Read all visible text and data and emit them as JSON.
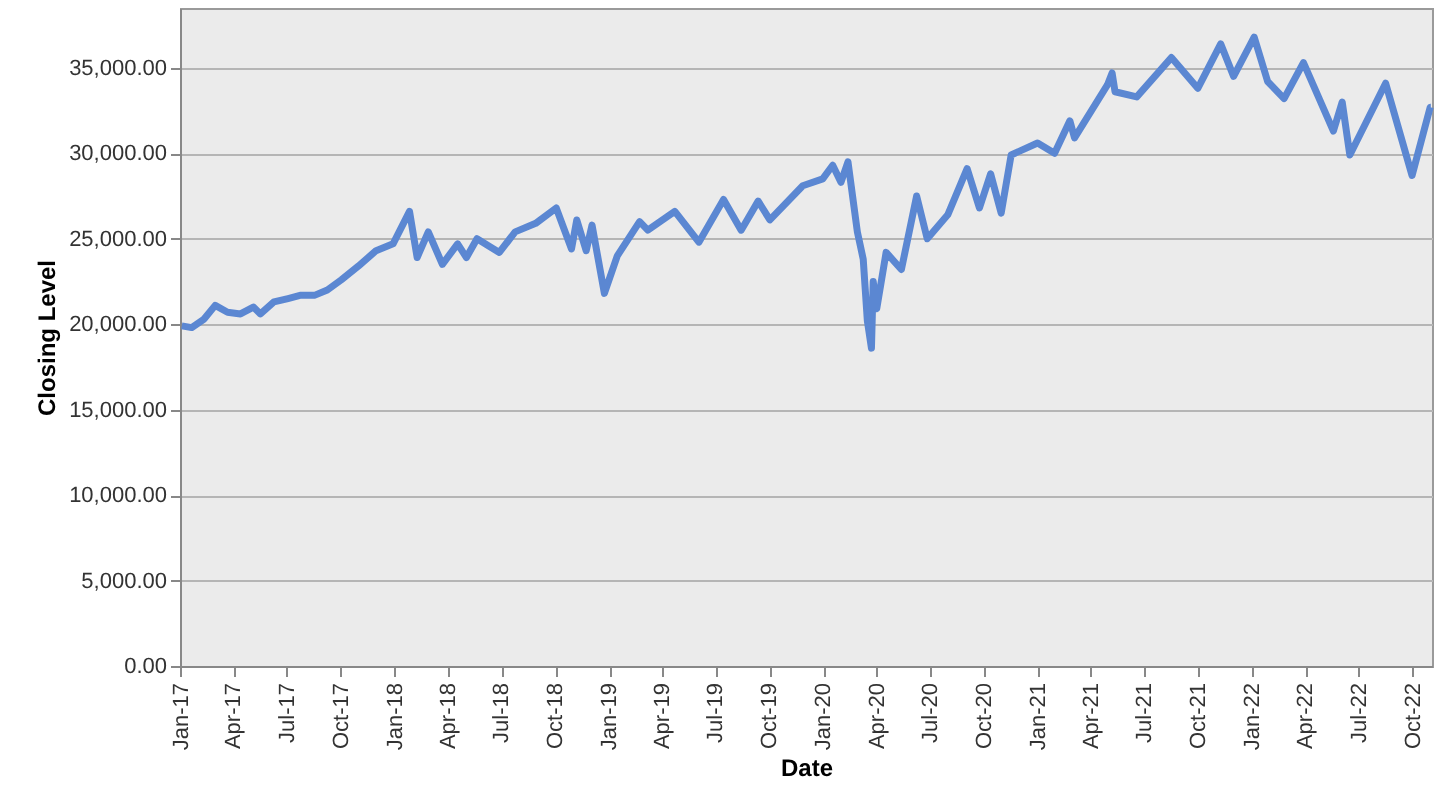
{
  "chart_data": {
    "type": "line",
    "xlabel": "Date",
    "ylabel": "Closing Level",
    "x": [
      "2017-01-03",
      "2017-01-20",
      "2017-02-10",
      "2017-03-01",
      "2017-03-22",
      "2017-04-13",
      "2017-05-05",
      "2017-05-17",
      "2017-06-09",
      "2017-07-03",
      "2017-07-25",
      "2017-08-18",
      "2017-09-08",
      "2017-10-02",
      "2017-10-31",
      "2017-11-30",
      "2017-12-29",
      "2018-01-26",
      "2018-02-08",
      "2018-02-27",
      "2018-03-23",
      "2018-04-18",
      "2018-05-03",
      "2018-05-21",
      "2018-06-28",
      "2018-07-25",
      "2018-08-29",
      "2018-10-03",
      "2018-10-29",
      "2018-11-07",
      "2018-11-23",
      "2018-12-03",
      "2018-12-24",
      "2019-01-15",
      "2019-02-22",
      "2019-03-08",
      "2019-04-23",
      "2019-06-03",
      "2019-07-15",
      "2019-08-14",
      "2019-09-12",
      "2019-10-02",
      "2019-11-27",
      "2019-12-31",
      "2020-01-17",
      "2020-01-31",
      "2020-02-12",
      "2020-02-28",
      "2020-03-09",
      "2020-03-16",
      "2020-03-23",
      "2020-03-26",
      "2020-04-01",
      "2020-04-17",
      "2020-05-13",
      "2020-06-08",
      "2020-06-26",
      "2020-07-31",
      "2020-09-02",
      "2020-09-23",
      "2020-10-12",
      "2020-10-30",
      "2020-11-16",
      "2020-12-31",
      "2021-01-29",
      "2021-02-24",
      "2021-03-04",
      "2021-04-29",
      "2021-05-07",
      "2021-05-12",
      "2021-06-18",
      "2021-08-16",
      "2021-09-30",
      "2021-11-08",
      "2021-11-30",
      "2021-12-29",
      "2022-01-04",
      "2022-01-27",
      "2022-02-24",
      "2022-03-29",
      "2022-05-19",
      "2022-06-03",
      "2022-06-16",
      "2022-08-16",
      "2022-09-30",
      "2022-10-31",
      "2022-11-01"
    ],
    "series": [
      {
        "color": "#5b87d2",
        "values": [
          19900,
          19800,
          20300,
          21100,
          20700,
          20600,
          21000,
          20600,
          21300,
          21500,
          21700,
          21700,
          22000,
          22600,
          23400,
          24300,
          24700,
          26600,
          23900,
          25400,
          23500,
          24700,
          23900,
          25000,
          24200,
          25400,
          25900,
          26800,
          24400,
          26100,
          24300,
          25800,
          21800,
          24000,
          26000,
          25500,
          26600,
          24800,
          27300,
          25500,
          27200,
          26100,
          28100,
          28500,
          29300,
          28300,
          29500,
          25400,
          23800,
          20200,
          18600,
          22500,
          20900,
          24200,
          23200,
          27500,
          25000,
          26400,
          29100,
          26800,
          28800,
          26500,
          29900,
          30600,
          30000,
          31900,
          30900,
          34000,
          34700,
          33600,
          33300,
          35600,
          33800,
          36400,
          34500,
          36400,
          36800,
          34200,
          33200,
          35300,
          31300,
          33000,
          29900,
          34100,
          28700,
          32700,
          32700
        ]
      }
    ],
    "ylim": [
      0,
      38500
    ],
    "yticks": [
      {
        "value": 0,
        "label": "0.00"
      },
      {
        "value": 5000,
        "label": "5,000.00"
      },
      {
        "value": 10000,
        "label": "10,000.00"
      },
      {
        "value": 15000,
        "label": "15,000.00"
      },
      {
        "value": 20000,
        "label": "20,000.00"
      },
      {
        "value": 25000,
        "label": "25,000.00"
      },
      {
        "value": 30000,
        "label": "30,000.00"
      },
      {
        "value": 35000,
        "label": "35,000.00"
      }
    ],
    "xlim": [
      "2016-12-31",
      "2022-11-03"
    ],
    "xticks": [
      {
        "value": "2017-01-01",
        "label": "Jan-17"
      },
      {
        "value": "2017-04-01",
        "label": "Apr-17"
      },
      {
        "value": "2017-07-01",
        "label": "Jul-17"
      },
      {
        "value": "2017-10-01",
        "label": "Oct-17"
      },
      {
        "value": "2018-01-01",
        "label": "Jan-18"
      },
      {
        "value": "2018-04-01",
        "label": "Apr-18"
      },
      {
        "value": "2018-07-01",
        "label": "Jul-18"
      },
      {
        "value": "2018-10-01",
        "label": "Oct-18"
      },
      {
        "value": "2019-01-01",
        "label": "Jan-19"
      },
      {
        "value": "2019-04-01",
        "label": "Apr-19"
      },
      {
        "value": "2019-07-01",
        "label": "Jul-19"
      },
      {
        "value": "2019-10-01",
        "label": "Oct-19"
      },
      {
        "value": "2020-01-01",
        "label": "Jan-20"
      },
      {
        "value": "2020-04-01",
        "label": "Apr-20"
      },
      {
        "value": "2020-07-01",
        "label": "Jul-20"
      },
      {
        "value": "2020-10-01",
        "label": "Oct-20"
      },
      {
        "value": "2021-01-01",
        "label": "Jan-21"
      },
      {
        "value": "2021-04-01",
        "label": "Apr-21"
      },
      {
        "value": "2021-07-01",
        "label": "Jul-21"
      },
      {
        "value": "2021-10-01",
        "label": "Oct-21"
      },
      {
        "value": "2022-01-01",
        "label": "Jan-22"
      },
      {
        "value": "2022-04-01",
        "label": "Apr-22"
      },
      {
        "value": "2022-07-01",
        "label": "Jul-22"
      },
      {
        "value": "2022-10-01",
        "label": "Oct-22"
      }
    ],
    "grid": "y",
    "marker": "none",
    "line_style": "solid"
  }
}
